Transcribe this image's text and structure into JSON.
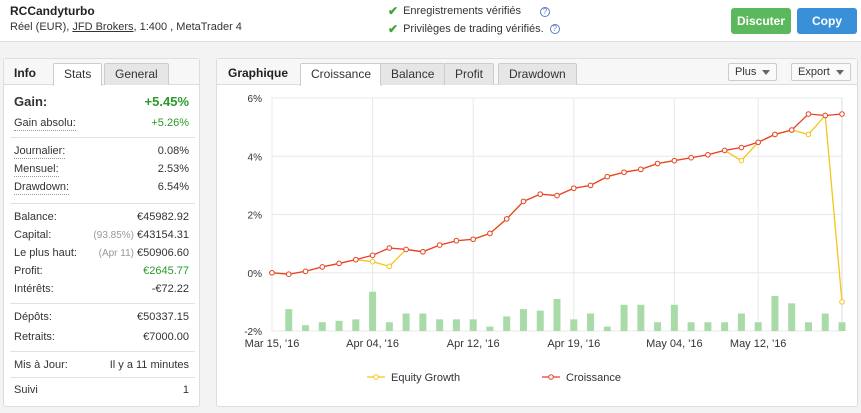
{
  "account": {
    "name": "RCCandyturbo",
    "type": "Réel (EUR),",
    "broker": "JFD Brokers",
    "details": ", 1:400 , MetaTrader 4"
  },
  "verifications": [
    {
      "label": "Enregistrements vérifiés"
    },
    {
      "label": "Privilèges de trading vérifiés."
    }
  ],
  "buttons": {
    "discuss": "Discuter",
    "copy": "Copy"
  },
  "left_tabs": {
    "title": "Info",
    "tabs": [
      "Stats",
      "General"
    ],
    "active": "Stats"
  },
  "stats": {
    "gain": {
      "label": "Gain:",
      "value": "+5.45%"
    },
    "abs_gain": {
      "label": "Gain absolu:",
      "value": "+5.26%"
    },
    "daily": {
      "label": "Journalier:",
      "value": "0.08%"
    },
    "monthly": {
      "label": "Mensuel:",
      "value": "2.53%"
    },
    "drawdown": {
      "label": "Drawdown:",
      "value": "6.54%"
    },
    "balance": {
      "label": "Balance:",
      "value": "€45982.92"
    },
    "equity": {
      "label": "Capital:",
      "sub": "(93.85%)",
      "value": "€43154.31"
    },
    "highest": {
      "label": "Le plus haut:",
      "sub": "(Apr 11)",
      "value": "€50906.60"
    },
    "profit": {
      "label": "Profit:",
      "value": "€2645.77"
    },
    "interest": {
      "label": "Intérêts:",
      "value": "-€72.22"
    },
    "deposits": {
      "label": "Dépôts:",
      "value": "€50337.15"
    },
    "withdrawals": {
      "label": "Retraits:",
      "value": "€7000.00"
    },
    "updated": {
      "label": "Mis à Jour:",
      "value": "Il y a 11 minutes"
    },
    "followed": {
      "label": "Suivi",
      "value": "1"
    }
  },
  "right_tabs": {
    "title": "Graphique",
    "tabs": [
      "Croissance",
      "Balance",
      "Profit",
      "Drawdown"
    ],
    "active": "Croissance"
  },
  "dropdowns": {
    "more": "Plus",
    "export": "Export"
  },
  "chart_data": {
    "type": "line",
    "x_tick_labels": [
      "Mar 15, '16",
      "Apr 04, '16",
      "Apr 12, '16",
      "Apr 19, '16",
      "May 04, '16",
      "May 12, '16"
    ],
    "x_tick_index": [
      0,
      6,
      12,
      18,
      24,
      29
    ],
    "y_tick_labels": [
      "6%",
      "4%",
      "2%",
      "0%",
      "-2%"
    ],
    "ylim": [
      -2,
      6
    ],
    "legend_position": "bottom",
    "colors": {
      "equity": "#f5c518",
      "growth": "#e8412b",
      "bars": "#a8dba8"
    },
    "series": [
      {
        "name": "Equity Growth",
        "values": [
          0.0,
          -0.05,
          0.05,
          0.2,
          0.32,
          0.45,
          0.38,
          0.22,
          0.8,
          0.72,
          0.95,
          1.1,
          1.15,
          1.35,
          1.85,
          2.45,
          2.7,
          2.65,
          2.9,
          3.0,
          3.3,
          3.45,
          3.55,
          3.75,
          3.85,
          3.95,
          4.05,
          4.2,
          3.85,
          4.48,
          4.75,
          4.9,
          4.75,
          5.4,
          -1.0
        ]
      },
      {
        "name": "Croissance",
        "values": [
          0.0,
          -0.05,
          0.05,
          0.2,
          0.32,
          0.45,
          0.6,
          0.85,
          0.8,
          0.72,
          0.95,
          1.1,
          1.15,
          1.35,
          1.85,
          2.45,
          2.7,
          2.65,
          2.9,
          3.0,
          3.3,
          3.45,
          3.55,
          3.75,
          3.85,
          3.95,
          4.05,
          4.2,
          4.3,
          4.48,
          4.75,
          4.9,
          5.45,
          5.4,
          5.45
        ]
      }
    ],
    "bars": [
      0,
      0.75,
      0.2,
      0.3,
      0.35,
      0.4,
      1.35,
      0.3,
      0.6,
      0.6,
      0.4,
      0.4,
      0.4,
      0.15,
      0.5,
      0.75,
      0.7,
      1.1,
      0.4,
      0.6,
      0.15,
      0.9,
      0.9,
      0.3,
      0.9,
      0.3,
      0.3,
      0.3,
      0.6,
      0.3,
      1.2,
      0.95,
      0.3,
      0.6,
      0.3
    ]
  }
}
